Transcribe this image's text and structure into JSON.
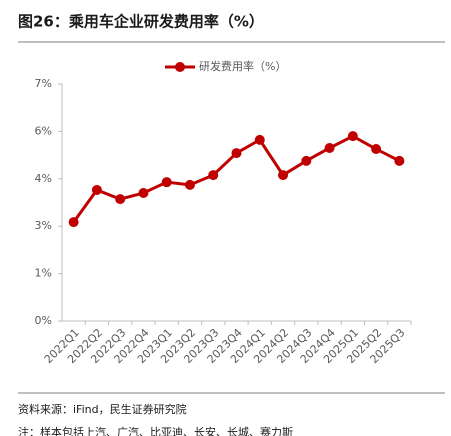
{
  "chart_data": {
    "type": "line",
    "title": "图26：乘用车企业研发费用率（%）",
    "categories": [
      "2022Q1",
      "2022Q2",
      "2022Q3",
      "2022Q4",
      "2023Q1",
      "2023Q2",
      "2023Q3",
      "2023Q4",
      "2024Q1",
      "2024Q2",
      "2024Q3",
      "2024Q4",
      "2025Q1",
      "2025Q2",
      "2025Q3"
    ],
    "series": [
      {
        "name": "研发费用率（%）",
        "color": "#c00000",
        "values": [
          2.92,
          3.87,
          3.6,
          3.78,
          4.1,
          4.02,
          4.31,
          4.96,
          5.35,
          4.31,
          4.73,
          5.11,
          5.46,
          5.08,
          4.73
        ]
      }
    ],
    "ylim": [
      0,
      7
    ],
    "yticks": [
      {
        "value": 0,
        "label": "0%"
      },
      {
        "value": 1.4,
        "label": "1%"
      },
      {
        "value": 2.8,
        "label": "3%"
      },
      {
        "value": 4.2,
        "label": "4%"
      },
      {
        "value": 5.6,
        "label": "6%"
      },
      {
        "value": 7,
        "label": "7%"
      }
    ],
    "grid": false,
    "legend": "top",
    "source": "资料来源：iFind，民生证券研究院",
    "note": "注：样本包括上汽、广汽、比亚迪、长安、长城、赛力斯"
  }
}
